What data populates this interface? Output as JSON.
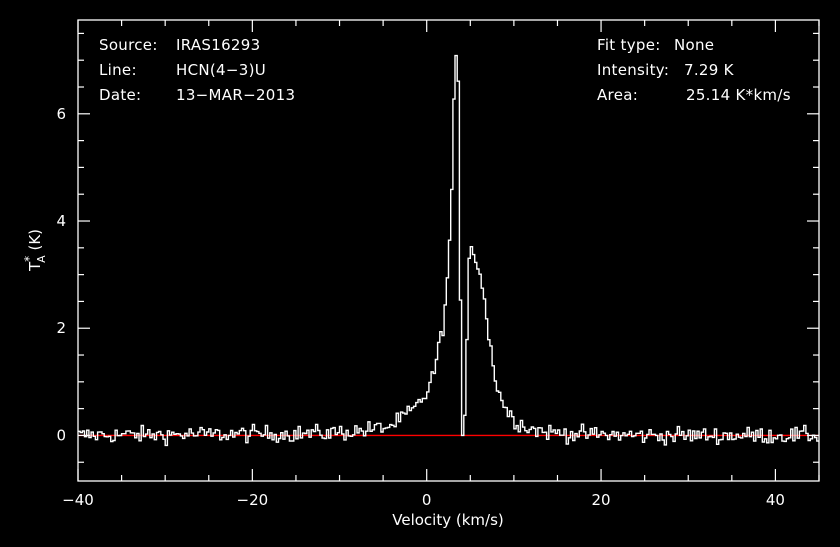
{
  "header": {
    "left": [
      {
        "key": "Source:",
        "value": "IRAS16293"
      },
      {
        "key": "Line:",
        "value": "HCN(4−3)U"
      },
      {
        "key": "Date:",
        "value": "13−MAR−2013"
      }
    ],
    "right": [
      {
        "key": "Fit type:",
        "value": "None"
      },
      {
        "key": "Intensity:",
        "value": "7.29 K"
      },
      {
        "key": "Area:",
        "value": "25.14 K*km/s"
      }
    ]
  },
  "colors": {
    "background": "#000000",
    "spectrum": "#ffffff",
    "baseline": "#ff0000",
    "axes": "#ffffff"
  },
  "chart_data": {
    "type": "line",
    "xlabel": "Velocity (km/s)",
    "ylabel": "T",
    "ylabel_sup": "*",
    "ylabel_sub": "A",
    "ylabel_unit": " (K)",
    "xlim": [
      -40,
      45
    ],
    "ylim": [
      -0.85,
      7.75
    ],
    "x_ticks": [
      -40,
      -20,
      0,
      20,
      40
    ],
    "x_tick_labels": [
      "−40",
      "−20",
      "0",
      "20",
      "40"
    ],
    "y_ticks": [
      0,
      2,
      4,
      6
    ],
    "y_tick_labels": [
      "0",
      "2",
      "4",
      "6"
    ],
    "baseline": 0,
    "series": [
      {
        "step": 0.25,
        "x": [
          -40,
          -36,
          -32,
          -28,
          -24,
          -20,
          -16,
          -12,
          -8,
          -6,
          -4,
          -3,
          -2,
          -1,
          0,
          0.5,
          1,
          1.5,
          2,
          2.3,
          2.6,
          2.9,
          3.2,
          3.5,
          3.7,
          3.9,
          4.0,
          4.1,
          4.3,
          4.6,
          4.9,
          5.3,
          5.7,
          6.0,
          6.3,
          6.6,
          7.0,
          7.5,
          8.0,
          8.5,
          9.0,
          9.5,
          10,
          11,
          12,
          14,
          18,
          25,
          35,
          45
        ],
        "y": [
          0.0,
          0.01,
          0.01,
          0.02,
          0.02,
          0.03,
          0.03,
          0.04,
          0.08,
          0.12,
          0.18,
          0.3,
          0.42,
          0.55,
          0.8,
          1.0,
          1.3,
          1.7,
          2.2,
          2.7,
          3.5,
          4.7,
          6.8,
          7.29,
          6.2,
          2.0,
          0.2,
          0.0,
          0.0,
          1.5,
          3.3,
          3.6,
          3.2,
          3.1,
          3.0,
          2.6,
          2.0,
          1.45,
          1.0,
          0.72,
          0.52,
          0.4,
          0.3,
          0.2,
          0.12,
          0.06,
          0.02,
          0.0,
          0.0,
          0.0
        ],
        "noise_rms": 0.11
      }
    ]
  }
}
